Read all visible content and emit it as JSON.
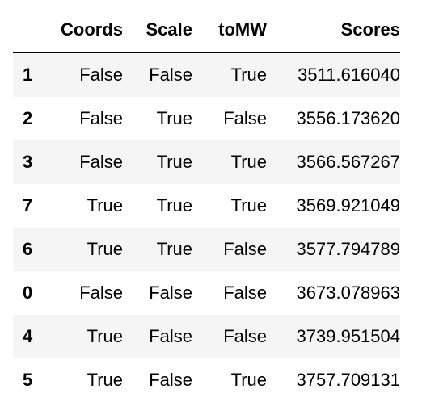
{
  "table": {
    "index_header": "",
    "columns": [
      "Coords",
      "Scale",
      "toMW",
      "Scores"
    ],
    "rows": [
      {
        "index": "1",
        "cells": [
          "False",
          "False",
          "True",
          "3511.616040"
        ]
      },
      {
        "index": "2",
        "cells": [
          "False",
          "True",
          "False",
          "3556.173620"
        ]
      },
      {
        "index": "3",
        "cells": [
          "False",
          "True",
          "True",
          "3566.567267"
        ]
      },
      {
        "index": "7",
        "cells": [
          "True",
          "True",
          "True",
          "3569.921049"
        ]
      },
      {
        "index": "6",
        "cells": [
          "True",
          "True",
          "False",
          "3577.794789"
        ]
      },
      {
        "index": "0",
        "cells": [
          "False",
          "False",
          "False",
          "3673.078963"
        ]
      },
      {
        "index": "4",
        "cells": [
          "True",
          "False",
          "False",
          "3739.951504"
        ]
      },
      {
        "index": "5",
        "cells": [
          "True",
          "False",
          "True",
          "3757.709131"
        ]
      }
    ]
  },
  "colors": {
    "text": "#000000",
    "header_rule": "#000000",
    "stripe": "#f5f5f5",
    "background": "#ffffff"
  }
}
